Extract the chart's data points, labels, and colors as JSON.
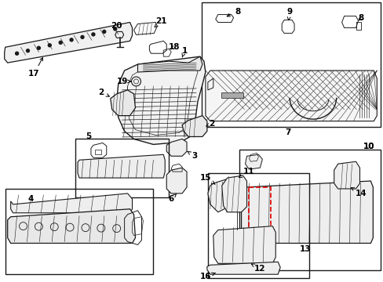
{
  "bg_color": "#ffffff",
  "line_color": "#1a1a1a",
  "red_dash_color": "#dd0000",
  "fig_width": 4.89,
  "fig_height": 3.6,
  "dpi": 100
}
